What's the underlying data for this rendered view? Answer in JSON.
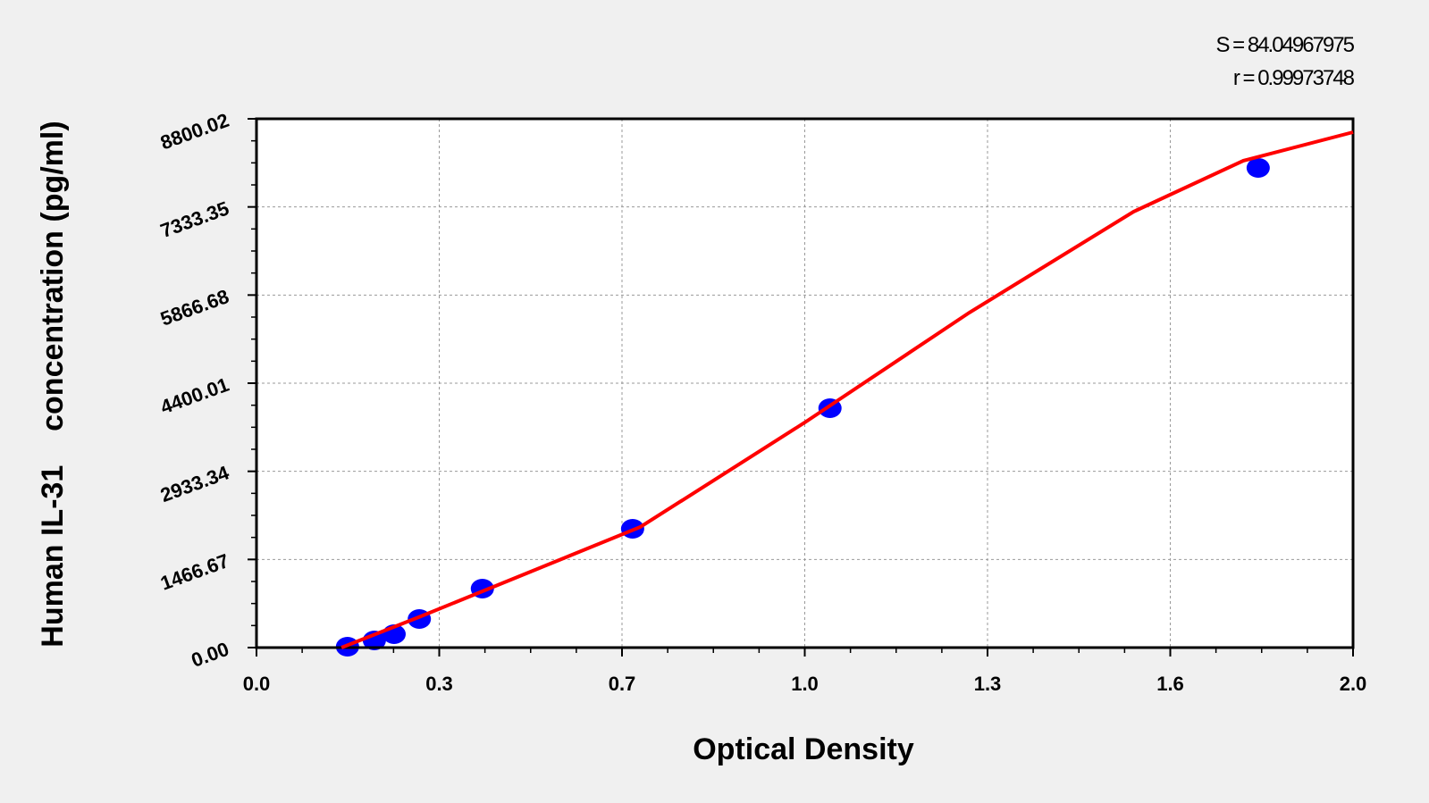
{
  "chart_data": {
    "type": "scatter",
    "title": "",
    "xlabel": "Optical Density",
    "ylabel": "Human IL-31    concentration (pg/ml)",
    "xlim": [
      0,
      2.0
    ],
    "ylim": [
      0,
      8800.02
    ],
    "x_tick_labels": [
      "0.0",
      "0.3",
      "0.7",
      "1.0",
      "1.3",
      "1.6",
      "2.0"
    ],
    "y_tick_labels": [
      "0.00",
      "1466.67",
      "2933.34",
      "4400.01",
      "5866.68",
      "7333.35",
      "8800.02"
    ],
    "grid": true,
    "statistics": [
      "S = 84.04967975",
      "r = 0.99973748"
    ],
    "points": {
      "color": "#0000ff",
      "x": [
        0.166,
        0.215,
        0.251,
        0.297,
        0.412,
        0.686,
        1.046,
        1.827
      ],
      "y": [
        15,
        119,
        223,
        476,
        981,
        1977,
        3984,
        7983
      ]
    },
    "fit_curve": {
      "color": "#ff0000",
      "x": [
        0.155,
        0.3,
        0.5,
        0.7,
        1.0,
        1.3,
        1.6,
        1.8,
        2.0
      ],
      "y": [
        0,
        520,
        1264,
        2007,
        3746,
        5575,
        7255,
        8103,
        8577
      ]
    }
  }
}
